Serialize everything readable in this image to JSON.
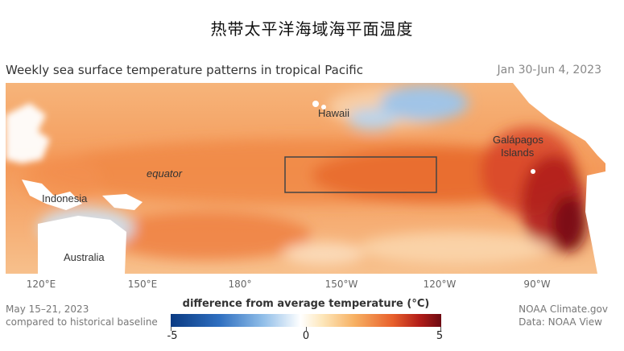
{
  "page_title": "热带太平洋海域海平面温度",
  "map": {
    "title": "Weekly sea surface temperature patterns in tropical Pacific",
    "date_range": "Jan 30-Jun 4, 2023",
    "labels": {
      "hawaii": "Hawaii",
      "galapagos_line1": "Galápagos",
      "galapagos_line2": "Islands",
      "equator": "equator",
      "indonesia": "Indonesia",
      "australia": "Australia"
    },
    "longitudes": [
      "120°E",
      "150°E",
      "180°",
      "150°W",
      "120°W",
      "90°W"
    ]
  },
  "footer": {
    "week": "May 15–21, 2023",
    "baseline": "compared to historical baseline",
    "source": "NOAA Climate.gov",
    "data": "Data: NOAA View"
  },
  "legend": {
    "title": "difference from average temperature (°C)",
    "min": "-5",
    "mid": "0",
    "max": "5"
  },
  "colors": {
    "warm_anomaly": "#e8702e",
    "strong_warm": "#8a0f14",
    "cool_anomaly": "#6fa6dc",
    "land": "#ffffff",
    "box": "#444444"
  }
}
